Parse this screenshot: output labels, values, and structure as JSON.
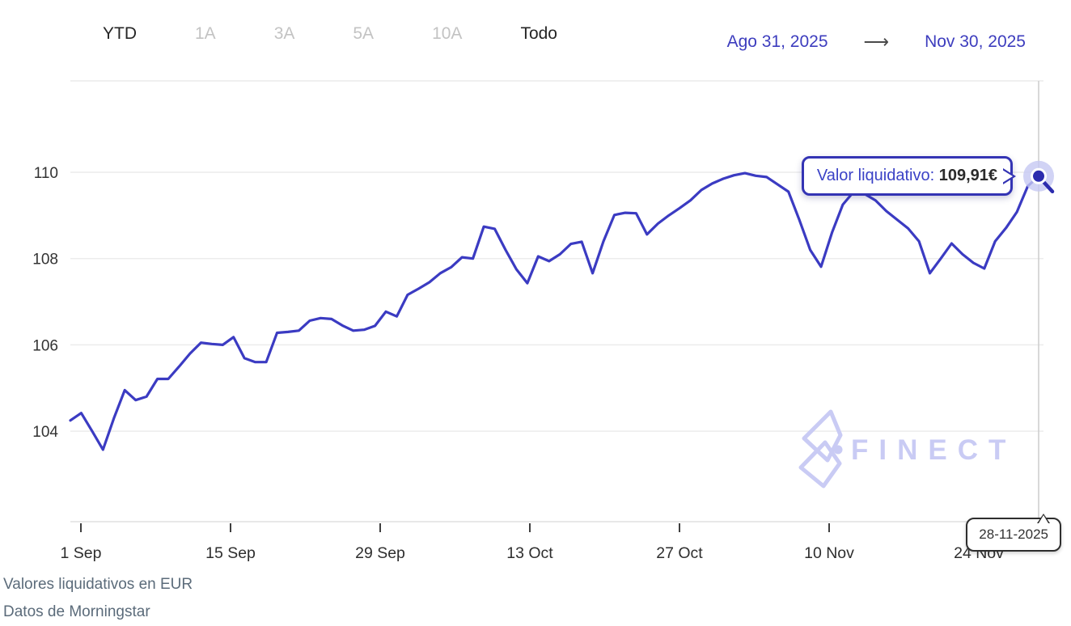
{
  "header": {
    "range_tabs": [
      {
        "id": "ytd",
        "label": "YTD",
        "muted": false
      },
      {
        "id": "1a",
        "label": "1A",
        "muted": true
      },
      {
        "id": "3a",
        "label": "3A",
        "muted": true
      },
      {
        "id": "5a",
        "label": "5A",
        "muted": true
      },
      {
        "id": "10a",
        "label": "10A",
        "muted": true
      },
      {
        "id": "todo",
        "label": "Todo",
        "muted": false
      }
    ],
    "date_range": {
      "start": "Ago 31, 2025",
      "arrow": "⟶",
      "end": "Nov 30, 2025"
    }
  },
  "chart_data": {
    "type": "line",
    "series_name": "Valor liquidativo",
    "currency": "EUR",
    "frequency": "daily",
    "start_date": "2025-08-31",
    "end_date": "2025-11-28",
    "values": [
      104.25,
      104.42,
      104.0,
      103.57,
      104.3,
      104.95,
      104.72,
      104.8,
      105.21,
      105.21,
      105.5,
      105.8,
      106.05,
      106.02,
      106.0,
      106.18,
      105.69,
      105.6,
      105.6,
      106.28,
      106.3,
      106.33,
      106.56,
      106.62,
      106.6,
      106.45,
      106.33,
      106.35,
      106.44,
      106.77,
      106.66,
      107.16,
      107.3,
      107.45,
      107.66,
      107.8,
      108.03,
      108.0,
      108.74,
      108.69,
      108.2,
      107.75,
      107.43,
      108.05,
      107.94,
      108.1,
      108.34,
      108.39,
      107.66,
      108.4,
      109.01,
      109.06,
      109.05,
      108.56,
      108.81,
      109.0,
      109.17,
      109.35,
      109.59,
      109.74,
      109.85,
      109.93,
      109.98,
      109.92,
      109.89,
      109.72,
      109.55,
      108.9,
      108.2,
      107.81,
      108.6,
      109.25,
      109.55,
      109.5,
      109.35,
      109.1,
      108.9,
      108.7,
      108.4,
      107.66,
      108.0,
      108.35,
      108.1,
      107.9,
      107.77,
      108.4,
      108.71,
      109.08,
      109.68,
      109.91
    ],
    "yticks": [
      104,
      106,
      108,
      110
    ],
    "xtick_labels": [
      "1 Sep",
      "15 Sep",
      "29 Sep",
      "13 Oct",
      "27 Oct",
      "10 Nov",
      "24 Nov"
    ],
    "ylim": [
      103.4,
      112.1
    ],
    "grid": true,
    "legend": "none",
    "last_point": {
      "date_label": "28-11-2025",
      "value": 109.91
    }
  },
  "tooltip": {
    "label": "Valor liquidativo",
    "separator": ": ",
    "value": "109,91€"
  },
  "date_tooltip": {
    "text": "28-11-2025"
  },
  "watermark": {
    "text": "FINECT"
  },
  "footer": {
    "line1": "Valores liquidativos en EUR",
    "line2": "Datos de Morningstar"
  },
  "colors": {
    "line": "#3b3bc2",
    "marker": "#2c2cae",
    "marker_halo": "#c6c8f2",
    "grid": "#ececec",
    "axis": "#e0e0e0",
    "tick": "#3f3f3f",
    "crosshair": "#cfcfcf",
    "axis_label": "#2e2e2e",
    "active_tab": "#262626",
    "muted_tab": "#c3c3c3",
    "date_text": "#3d3dbe",
    "tooltip_border": "#3434b4",
    "watermark": "#c9cbf4",
    "footer_text": "#5b6b7a"
  }
}
